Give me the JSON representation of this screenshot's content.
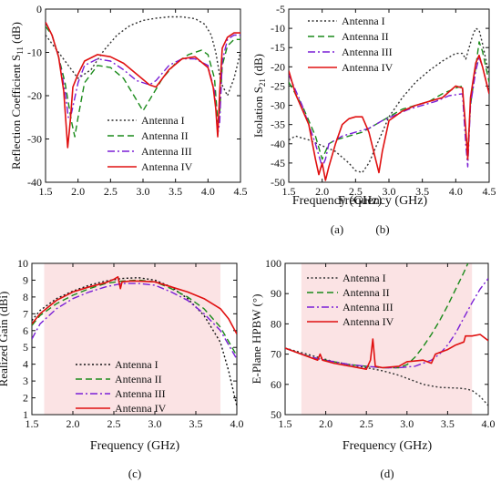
{
  "chart_data": [
    {
      "type": "line",
      "caption": "(a)",
      "xlabel": "Frequency (GHz)",
      "ylabel": "Reflection Coefficient S",
      "ylabel_sub": "11",
      "ylabel_unit": " (dB)",
      "xlim": [
        1.5,
        4.5
      ],
      "ylim": [
        -40,
        0
      ],
      "xticks": [
        1.5,
        2.0,
        2.5,
        3.0,
        3.5,
        4.0,
        4.5
      ],
      "xtick_labels": [
        "1.5",
        "2.0",
        "2.5",
        "3.0",
        "3.5",
        "4.0",
        "4.5"
      ],
      "yticks": [
        0,
        -10,
        -20,
        -30,
        -40
      ],
      "ytick_labels": [
        "0",
        "-10",
        "-20",
        "-30",
        "-40"
      ],
      "grid": false,
      "legend_position": "bottom-right",
      "series": [
        {
          "name": "Antenna I",
          "color": "#333333",
          "style": "dot",
          "x": [
            1.5,
            1.6,
            1.7,
            1.8,
            1.9,
            2.0,
            2.2,
            2.4,
            2.6,
            2.8,
            3.0,
            3.2,
            3.4,
            3.6,
            3.8,
            3.95,
            4.05,
            4.12,
            4.2,
            4.3,
            4.4,
            4.5
          ],
          "y": [
            -6,
            -8,
            -10,
            -12,
            -14,
            -16,
            -14,
            -9.5,
            -6,
            -3.8,
            -2.6,
            -2.1,
            -1.8,
            -1.8,
            -2.2,
            -3.5,
            -6,
            -10,
            -17,
            -20,
            -16,
            -10
          ]
        },
        {
          "name": "Antenna II",
          "color": "#1a8a1a",
          "style": "dash",
          "x": [
            1.5,
            1.6,
            1.7,
            1.8,
            1.9,
            1.95,
            2.0,
            2.1,
            2.3,
            2.5,
            2.7,
            2.9,
            3.0,
            3.1,
            3.3,
            3.5,
            3.7,
            3.9,
            4.0,
            4.1,
            4.15,
            4.18,
            4.22,
            4.3,
            4.4,
            4.5
          ],
          "y": [
            -4,
            -6,
            -11,
            -17,
            -26,
            -29.5,
            -25,
            -17,
            -13,
            -13.5,
            -16,
            -21,
            -23.5,
            -21,
            -16,
            -12.5,
            -10.5,
            -9.5,
            -10.5,
            -16,
            -26,
            -24,
            -13,
            -8.5,
            -7,
            -7
          ]
        },
        {
          "name": "Antenna III",
          "color": "#7a1fd6",
          "style": "dashdot",
          "x": [
            1.5,
            1.6,
            1.7,
            1.8,
            1.85,
            1.9,
            2.0,
            2.1,
            2.3,
            2.5,
            2.7,
            2.9,
            3.1,
            3.2,
            3.4,
            3.6,
            3.8,
            4.0,
            4.1,
            4.15,
            4.18,
            4.22,
            4.3,
            4.4,
            4.5
          ],
          "y": [
            -3,
            -6,
            -11,
            -19,
            -25,
            -24,
            -17,
            -13,
            -11.5,
            -12,
            -14,
            -16.5,
            -17.5,
            -16.5,
            -13,
            -11.5,
            -11.5,
            -13,
            -19,
            -29,
            -26,
            -12,
            -7,
            -6,
            -6
          ]
        },
        {
          "name": "Antenna IV",
          "color": "#e01010",
          "style": "solid",
          "x": [
            1.5,
            1.6,
            1.7,
            1.78,
            1.84,
            1.88,
            1.92,
            2.0,
            2.1,
            2.3,
            2.5,
            2.7,
            2.9,
            3.1,
            3.2,
            3.4,
            3.6,
            3.8,
            4.0,
            4.08,
            4.12,
            4.15,
            4.18,
            4.22,
            4.3,
            4.4,
            4.5
          ],
          "y": [
            -3,
            -6,
            -11,
            -19,
            -32,
            -26,
            -18,
            -15,
            -12,
            -10.5,
            -11,
            -12.5,
            -15,
            -17.5,
            -18,
            -14,
            -11.5,
            -11,
            -13.5,
            -18,
            -23,
            -29.5,
            -19,
            -9,
            -6.5,
            -5.5,
            -5.5
          ]
        }
      ]
    },
    {
      "type": "line",
      "caption": "(b)",
      "xlabel": "Frequency (GHz)",
      "ylabel": "Isolation S",
      "ylabel_sub": "21",
      "ylabel_unit": " (dB)",
      "xlim": [
        1.5,
        4.5
      ],
      "ylim": [
        -50,
        -5
      ],
      "xticks": [
        1.5,
        2.0,
        2.5,
        3.0,
        3.5,
        4.0,
        4.5
      ],
      "xtick_labels": [
        "1.5",
        "2.0",
        "2.5",
        "3.0",
        "3.5",
        "4.0",
        "4.5"
      ],
      "yticks": [
        -5,
        -10,
        -15,
        -20,
        -25,
        -30,
        -35,
        -40,
        -45,
        -50
      ],
      "ytick_labels": [
        "-5",
        "-10",
        "-15",
        "-20",
        "-25",
        "-30",
        "-35",
        "-40",
        "-45",
        "-50"
      ],
      "grid": false,
      "legend_position": "top-left",
      "series": [
        {
          "name": "Antenna I",
          "color": "#333333",
          "style": "dot",
          "x": [
            1.5,
            1.6,
            1.8,
            2.0,
            2.2,
            2.4,
            2.5,
            2.6,
            2.7,
            2.8,
            3.0,
            3.2,
            3.4,
            3.6,
            3.8,
            4.0,
            4.1,
            4.15,
            4.2,
            4.25,
            4.3,
            4.35,
            4.4,
            4.45,
            4.5
          ],
          "y": [
            -39,
            -38,
            -39,
            -40.5,
            -42,
            -45,
            -47,
            -47.5,
            -45,
            -41,
            -33,
            -28,
            -24,
            -21,
            -18.5,
            -16.5,
            -16.5,
            -18,
            -15,
            -12,
            -10,
            -10.5,
            -14,
            -18,
            -22
          ]
        },
        {
          "name": "Antenna II",
          "color": "#1a8a1a",
          "style": "dash",
          "x": [
            1.5,
            1.7,
            1.9,
            2.0,
            2.1,
            2.2,
            2.4,
            2.6,
            2.8,
            3.0,
            3.2,
            3.4,
            3.6,
            3.8,
            4.0,
            4.1,
            4.15,
            4.18,
            4.22,
            4.3,
            4.35,
            4.4,
            4.5
          ],
          "y": [
            -24,
            -30,
            -38,
            -44,
            -40,
            -39,
            -38,
            -37,
            -35,
            -33,
            -31,
            -30,
            -29,
            -27,
            -25.5,
            -25,
            -37,
            -42,
            -30,
            -20,
            -13.5,
            -16,
            -24
          ]
        },
        {
          "name": "Antenna III",
          "color": "#7a1fd6",
          "style": "dashdot",
          "x": [
            1.5,
            1.7,
            1.9,
            2.0,
            2.05,
            2.1,
            2.3,
            2.5,
            2.7,
            2.9,
            3.1,
            3.3,
            3.5,
            3.7,
            3.9,
            4.1,
            4.15,
            4.18,
            4.22,
            4.3,
            4.35,
            4.4,
            4.5
          ],
          "y": [
            -22,
            -30,
            -40,
            -46,
            -44,
            -40,
            -38,
            -37,
            -36,
            -34,
            -32.5,
            -31,
            -30,
            -29,
            -27.5,
            -27,
            -40,
            -46,
            -30,
            -21,
            -17.5,
            -20,
            -27
          ]
        },
        {
          "name": "Antenna IV",
          "color": "#e01010",
          "style": "solid",
          "x": [
            1.5,
            1.6,
            1.7,
            1.8,
            1.9,
            1.95,
            2.0,
            2.05,
            2.1,
            2.2,
            2.3,
            2.4,
            2.5,
            2.6,
            2.7,
            2.8,
            2.85,
            2.9,
            3.0,
            3.2,
            3.4,
            3.6,
            3.8,
            4.0,
            4.1,
            4.15,
            4.18,
            4.22,
            4.3,
            4.35,
            4.4,
            4.5
          ],
          "y": [
            -21,
            -27,
            -31,
            -35,
            -44,
            -48,
            -45,
            -49.5,
            -46,
            -40,
            -35,
            -33.5,
            -33,
            -33,
            -37,
            -44,
            -47.5,
            -42,
            -34,
            -31.5,
            -30,
            -29,
            -28,
            -25,
            -25.5,
            -36,
            -44,
            -28,
            -19,
            -17,
            -20,
            -27
          ]
        }
      ]
    },
    {
      "type": "line",
      "caption": "(c)",
      "xlabel": "Frequency (GHz)",
      "ylabel": "Realized Gain (dBi)",
      "xlim": [
        1.5,
        4.0
      ],
      "ylim": [
        1,
        10
      ],
      "xticks": [
        1.5,
        2.0,
        2.5,
        3.0,
        3.5,
        4.0
      ],
      "xtick_labels": [
        "1.5",
        "2.0",
        "2.5",
        "3.0",
        "3.5",
        "4.0"
      ],
      "yticks": [
        1,
        2,
        3,
        4,
        5,
        6,
        7,
        8,
        9,
        10
      ],
      "ytick_labels": [
        "1",
        "2",
        "3",
        "4",
        "5",
        "6",
        "7",
        "8",
        "9",
        "10"
      ],
      "grid": false,
      "legend_position": "bottom-center",
      "shaded_band": [
        1.65,
        3.8
      ],
      "series": [
        {
          "name": "Antenna I",
          "color": "#111111",
          "style": "dot",
          "x": [
            1.5,
            1.6,
            1.8,
            2.0,
            2.2,
            2.4,
            2.6,
            2.8,
            3.0,
            3.2,
            3.4,
            3.6,
            3.8,
            3.9,
            4.0
          ],
          "y": [
            6.6,
            7.2,
            7.9,
            8.35,
            8.7,
            8.95,
            9.1,
            9.15,
            9.0,
            8.6,
            7.9,
            6.9,
            5.3,
            3.6,
            1.5
          ]
        },
        {
          "name": "Antenna II",
          "color": "#1a8a1a",
          "style": "dash",
          "x": [
            1.5,
            1.6,
            1.8,
            2.0,
            2.2,
            2.4,
            2.6,
            2.8,
            3.0,
            3.2,
            3.4,
            3.6,
            3.8,
            4.0
          ],
          "y": [
            6.3,
            6.9,
            7.6,
            8.1,
            8.5,
            8.8,
            8.95,
            9.0,
            8.9,
            8.5,
            8.0,
            7.3,
            6.2,
            4.5
          ]
        },
        {
          "name": "Antenna III",
          "color": "#7a1fd6",
          "style": "dashdot",
          "x": [
            1.5,
            1.6,
            1.8,
            2.0,
            2.2,
            2.4,
            2.6,
            2.8,
            3.0,
            3.2,
            3.4,
            3.6,
            3.8,
            4.0
          ],
          "y": [
            5.5,
            6.4,
            7.3,
            7.9,
            8.3,
            8.6,
            8.8,
            8.8,
            8.7,
            8.3,
            7.8,
            7.0,
            6.0,
            4.3
          ]
        },
        {
          "name": "Antenna IV",
          "color": "#e01010",
          "style": "solid",
          "x": [
            1.5,
            1.6,
            1.8,
            2.0,
            2.2,
            2.4,
            2.5,
            2.55,
            2.58,
            2.6,
            2.7,
            2.8,
            3.0,
            3.2,
            3.4,
            3.6,
            3.8,
            3.9,
            4.0
          ],
          "y": [
            6.4,
            7.0,
            7.8,
            8.3,
            8.6,
            8.85,
            9.05,
            9.2,
            8.5,
            8.9,
            8.95,
            8.95,
            8.9,
            8.6,
            8.3,
            7.9,
            7.3,
            6.7,
            5.8
          ]
        }
      ]
    },
    {
      "type": "line",
      "caption": "(d)",
      "xlabel": "Frequency (GHz)",
      "ylabel": "E-Plane HPBW (°)",
      "xlim": [
        1.5,
        4.0
      ],
      "ylim": [
        50,
        100
      ],
      "xticks": [
        1.5,
        2.0,
        2.5,
        3.0,
        3.5,
        4.0
      ],
      "xtick_labels": [
        "1.5",
        "2.0",
        "2.5",
        "3.0",
        "3.5",
        "4.0"
      ],
      "yticks": [
        50,
        60,
        70,
        80,
        90,
        100
      ],
      "ytick_labels": [
        "50",
        "60",
        "70",
        "80",
        "90",
        "100"
      ],
      "grid": false,
      "legend_position": "top-left",
      "shaded_band": [
        1.7,
        3.8
      ],
      "series": [
        {
          "name": "Antenna I",
          "color": "#333333",
          "style": "dot",
          "x": [
            1.5,
            1.7,
            1.9,
            2.1,
            2.3,
            2.5,
            2.7,
            2.9,
            3.0,
            3.2,
            3.4,
            3.6,
            3.7,
            3.8,
            3.9,
            4.0
          ],
          "y": [
            72,
            70.5,
            69,
            67.5,
            66.5,
            65.5,
            64.5,
            63,
            62,
            60,
            59,
            58.8,
            58.6,
            58,
            56,
            53
          ]
        },
        {
          "name": "Antenna II",
          "color": "#1a8a1a",
          "style": "dash",
          "x": [
            1.5,
            1.7,
            1.9,
            2.1,
            2.3,
            2.5,
            2.7,
            2.9,
            3.0,
            3.1,
            3.2,
            3.3,
            3.4,
            3.5,
            3.6,
            3.7,
            3.75
          ],
          "y": [
            72,
            70,
            68.5,
            67.5,
            66.5,
            66,
            65.5,
            65.5,
            66.5,
            69,
            72.5,
            76.5,
            81,
            86,
            91.5,
            97,
            100
          ]
        },
        {
          "name": "Antenna III",
          "color": "#7a1fd6",
          "style": "dashdot",
          "x": [
            1.5,
            1.7,
            1.9,
            2.1,
            2.3,
            2.5,
            2.7,
            2.9,
            3.1,
            3.3,
            3.4,
            3.5,
            3.6,
            3.7,
            3.8,
            3.9,
            4.0
          ],
          "y": [
            72,
            70,
            68.5,
            67.5,
            66.5,
            66,
            65.5,
            65.5,
            66,
            68,
            70,
            73,
            77,
            82,
            87,
            91.5,
            95
          ]
        },
        {
          "name": "Antenna IV",
          "color": "#e01010",
          "style": "solid",
          "x": [
            1.5,
            1.7,
            1.9,
            1.93,
            1.96,
            2.1,
            2.3,
            2.5,
            2.55,
            2.58,
            2.61,
            2.7,
            2.9,
            3.0,
            3.2,
            3.3,
            3.35,
            3.4,
            3.5,
            3.6,
            3.7,
            3.72,
            3.8,
            3.9,
            4.0
          ],
          "y": [
            72,
            70,
            68,
            70,
            68,
            67,
            66,
            65,
            68,
            75,
            66,
            65.5,
            66,
            67.5,
            68,
            67,
            70,
            70.5,
            71.5,
            73,
            74,
            76,
            76,
            76.5,
            74.5
          ]
        }
      ]
    }
  ]
}
